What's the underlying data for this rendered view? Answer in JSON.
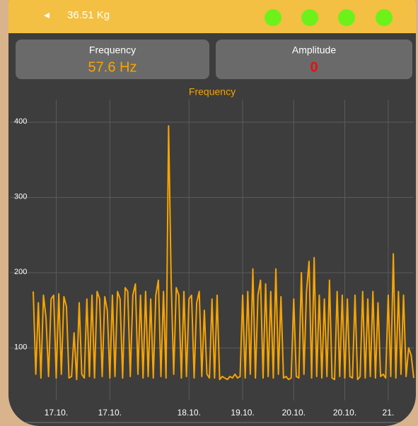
{
  "header": {
    "weight": "36.51 Kg"
  },
  "cards": [
    {
      "label": "Frequency",
      "value": "57.6 Hz"
    },
    {
      "label": "Amplitude",
      "value": "0"
    }
  ],
  "chart_data": {
    "type": "line",
    "title": "Frequency",
    "series": [
      {
        "name": "Frequency",
        "color": "#f7a400",
        "values": [
          175,
          65,
          160,
          60,
          170,
          140,
          62,
          165,
          170,
          60,
          172,
          65,
          168,
          155,
          60,
          62,
          120,
          58,
          160,
          65,
          60,
          165,
          62,
          170,
          60,
          175,
          165,
          62,
          168,
          150,
          60,
          170,
          62,
          175,
          165,
          60,
          180,
          175,
          62,
          170,
          185,
          65,
          170,
          60,
          175,
          62,
          165,
          60,
          170,
          190,
          62,
          175,
          60,
          395,
          190,
          65,
          180,
          170,
          60,
          175,
          62,
          165,
          170,
          60,
          160,
          175,
          62,
          150,
          65,
          60,
          165,
          60,
          170,
          58,
          62,
          60,
          58,
          62,
          60,
          65,
          60,
          62,
          170,
          60,
          175,
          65,
          205,
          60,
          170,
          190,
          60,
          185,
          62,
          175,
          60,
          205,
          65,
          168,
          60,
          62,
          58,
          60,
          165,
          62,
          60,
          200,
          65,
          175,
          215,
          60,
          220,
          62,
          170,
          60,
          165,
          62,
          190,
          60,
          58,
          175,
          62,
          170,
          60,
          165,
          62,
          60,
          170,
          58,
          62,
          175,
          60,
          165,
          62,
          175,
          60,
          160,
          62,
          65,
          60,
          170,
          62,
          225,
          60,
          175,
          65,
          170,
          62,
          100,
          90,
          60
        ]
      }
    ],
    "xlim": [
      0,
      149
    ],
    "xticks": [
      {
        "value": 9,
        "label": "17.10."
      },
      {
        "value": 30,
        "label": "17.10."
      },
      {
        "value": 61,
        "label": "18.10."
      },
      {
        "value": 82,
        "label": "19.10."
      },
      {
        "value": 102,
        "label": "20.10."
      },
      {
        "value": 122,
        "label": "20.10."
      },
      {
        "value": 139,
        "label": "21."
      }
    ],
    "ylim": [
      30,
      430
    ],
    "yticks": [
      100,
      200,
      300,
      400
    ],
    "grid": true
  }
}
